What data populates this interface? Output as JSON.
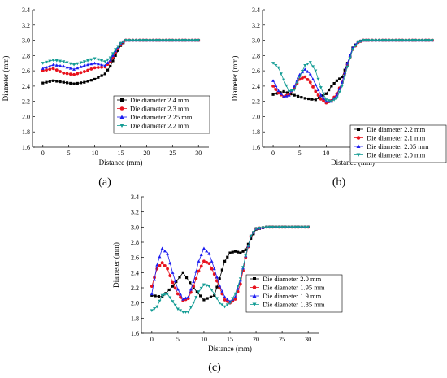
{
  "chart_data": [
    {
      "type": "line",
      "panel_label": "(a)",
      "xlabel": "Distance (mm)",
      "ylabel": "Diameter (mm)",
      "xlim": [
        -2,
        32
      ],
      "ylim": [
        1.6,
        3.4
      ],
      "xticks": [
        0,
        5,
        10,
        15,
        20,
        25,
        30
      ],
      "yticks": [
        1.6,
        1.8,
        2.0,
        2.2,
        2.4,
        2.6,
        2.8,
        3.0,
        3.2,
        3.4
      ],
      "legend_position": "center-right",
      "series": [
        {
          "name": "Die diameter 2.4 mm",
          "marker": "square",
          "color": "#000000",
          "x": [
            0,
            2,
            4,
            6,
            8,
            10,
            12,
            13,
            14,
            15,
            16,
            18,
            20,
            25,
            30
          ],
          "y": [
            2.44,
            2.47,
            2.45,
            2.43,
            2.45,
            2.49,
            2.56,
            2.66,
            2.8,
            2.93,
            3.0,
            3.0,
            3.0,
            3.0,
            3.0
          ]
        },
        {
          "name": "Die diameter 2.3 mm",
          "marker": "circle",
          "color": "#e8121d",
          "x": [
            0,
            2,
            4,
            6,
            8,
            10,
            12,
            13,
            14,
            15,
            16,
            18,
            20,
            25,
            30
          ],
          "y": [
            2.6,
            2.63,
            2.57,
            2.55,
            2.59,
            2.64,
            2.65,
            2.72,
            2.84,
            2.95,
            3.0,
            3.0,
            3.0,
            3.0,
            3.0
          ]
        },
        {
          "name": "Die diameter 2.25 mm",
          "marker": "triangle-up",
          "color": "#1c1cf0",
          "x": [
            0,
            2,
            4,
            6,
            8,
            10,
            12,
            13,
            14,
            15,
            16,
            18,
            20,
            25,
            30
          ],
          "y": [
            2.63,
            2.68,
            2.66,
            2.62,
            2.67,
            2.7,
            2.67,
            2.74,
            2.86,
            2.96,
            3.0,
            3.0,
            3.0,
            3.0,
            3.0
          ]
        },
        {
          "name": "Die diameter 2.2 mm",
          "marker": "triangle-down",
          "color": "#139c94",
          "x": [
            0,
            2,
            4,
            6,
            8,
            10,
            12,
            13,
            14,
            15,
            16,
            18,
            20,
            25,
            30
          ],
          "y": [
            2.7,
            2.74,
            2.72,
            2.68,
            2.72,
            2.76,
            2.72,
            2.77,
            2.88,
            2.96,
            3.0,
            3.0,
            3.0,
            3.0,
            3.0
          ]
        }
      ]
    },
    {
      "type": "line",
      "panel_label": "(b)",
      "xlabel": "Distance (mm)",
      "ylabel": "Diameter (mm)",
      "xlim": [
        -2,
        32
      ],
      "ylim": [
        1.6,
        3.4
      ],
      "xticks": [
        0,
        5,
        10,
        15,
        20,
        25,
        30
      ],
      "yticks": [
        1.6,
        1.8,
        2.0,
        2.2,
        2.4,
        2.6,
        2.8,
        3.0,
        3.2,
        3.4
      ],
      "legend_position": "lower-right",
      "series": [
        {
          "name": "Die diameter 2.2 mm",
          "marker": "square",
          "color": "#000000",
          "x": [
            0,
            2,
            4,
            6,
            8,
            10,
            11,
            12,
            13,
            14,
            15,
            16,
            17,
            18,
            20,
            25,
            30
          ],
          "y": [
            2.29,
            2.33,
            2.28,
            2.24,
            2.22,
            2.3,
            2.4,
            2.47,
            2.52,
            2.7,
            2.9,
            2.98,
            3.0,
            3.0,
            3.0,
            3.0,
            3.0
          ]
        },
        {
          "name": "Die diameter 2.1 mm",
          "marker": "circle",
          "color": "#e8121d",
          "x": [
            0,
            1,
            2,
            3,
            4,
            5,
            6,
            7,
            8,
            9,
            10,
            11,
            12,
            13,
            14,
            15,
            16,
            17,
            18,
            20,
            25,
            30
          ],
          "y": [
            2.4,
            2.31,
            2.26,
            2.29,
            2.38,
            2.49,
            2.52,
            2.45,
            2.33,
            2.23,
            2.18,
            2.21,
            2.3,
            2.45,
            2.68,
            2.88,
            2.97,
            3.0,
            3.0,
            3.0,
            3.0,
            3.0
          ]
        },
        {
          "name": "Die diameter 2.05 mm",
          "marker": "triangle-up",
          "color": "#1c1cf0",
          "x": [
            0,
            1,
            2,
            3,
            4,
            5,
            6,
            7,
            8,
            9,
            10,
            11,
            12,
            13,
            14,
            15,
            16,
            17,
            18,
            20,
            25,
            30
          ],
          "y": [
            2.47,
            2.34,
            2.26,
            2.28,
            2.4,
            2.55,
            2.62,
            2.56,
            2.42,
            2.28,
            2.2,
            2.2,
            2.28,
            2.45,
            2.7,
            2.9,
            2.98,
            3.0,
            3.0,
            3.0,
            3.0,
            3.0
          ]
        },
        {
          "name": "Die diameter 2.0 mm",
          "marker": "triangle-down",
          "color": "#139c94",
          "x": [
            0,
            1,
            2,
            3,
            4,
            5,
            6,
            7,
            8,
            9,
            10,
            11,
            12,
            13,
            14,
            15,
            16,
            17,
            18,
            20,
            25,
            30
          ],
          "y": [
            2.7,
            2.64,
            2.48,
            2.33,
            2.35,
            2.52,
            2.67,
            2.71,
            2.6,
            2.38,
            2.22,
            2.2,
            2.24,
            2.4,
            2.65,
            2.88,
            2.97,
            3.0,
            3.0,
            3.0,
            3.0,
            3.0
          ]
        }
      ]
    },
    {
      "type": "line",
      "panel_label": "(c)",
      "xlabel": "Distance (mm)",
      "ylabel": "Diameter (mm)",
      "xlim": [
        -2,
        32
      ],
      "ylim": [
        1.6,
        3.4
      ],
      "xticks": [
        0,
        5,
        10,
        15,
        20,
        25,
        30
      ],
      "yticks": [
        1.6,
        1.8,
        2.0,
        2.2,
        2.4,
        2.6,
        2.8,
        3.0,
        3.2,
        3.4
      ],
      "legend_position": "lower-right",
      "series": [
        {
          "name": "Die diameter 2.0 mm",
          "marker": "square",
          "color": "#000000",
          "x": [
            0,
            2,
            4,
            6,
            8,
            10,
            12,
            13,
            14,
            15,
            16,
            17,
            18,
            19,
            20,
            22,
            25,
            30
          ],
          "y": [
            2.1,
            2.08,
            2.22,
            2.4,
            2.2,
            2.04,
            2.1,
            2.32,
            2.55,
            2.66,
            2.68,
            2.66,
            2.7,
            2.85,
            2.97,
            3.0,
            3.0,
            3.0
          ]
        },
        {
          "name": "Die diameter 1.95 mm",
          "marker": "circle",
          "color": "#e8121d",
          "x": [
            0,
            1,
            2,
            3,
            4,
            5,
            6,
            7,
            8,
            9,
            10,
            11,
            12,
            13,
            14,
            15,
            16,
            17,
            18,
            19,
            20,
            22,
            25,
            30
          ],
          "y": [
            2.22,
            2.45,
            2.53,
            2.45,
            2.27,
            2.12,
            2.03,
            2.06,
            2.22,
            2.42,
            2.55,
            2.52,
            2.38,
            2.2,
            2.04,
            2.0,
            2.05,
            2.25,
            2.6,
            2.88,
            2.98,
            3.0,
            3.0,
            3.0
          ]
        },
        {
          "name": "Die diameter 1.9 mm",
          "marker": "triangle-up",
          "color": "#1c1cf0",
          "x": [
            0,
            1,
            2,
            3,
            4,
            5,
            6,
            7,
            8,
            9,
            10,
            11,
            12,
            13,
            14,
            15,
            16,
            17,
            18,
            19,
            20,
            22,
            25,
            30
          ],
          "y": [
            2.12,
            2.5,
            2.72,
            2.65,
            2.4,
            2.18,
            2.05,
            2.08,
            2.28,
            2.55,
            2.72,
            2.65,
            2.45,
            2.23,
            2.08,
            2.02,
            2.08,
            2.3,
            2.62,
            2.88,
            2.98,
            3.0,
            3.0,
            3.0
          ]
        },
        {
          "name": "Die diameter 1.85 mm",
          "marker": "triangle-down",
          "color": "#139c94",
          "x": [
            0,
            1,
            2,
            3,
            4,
            5,
            6,
            7,
            8,
            9,
            10,
            11,
            12,
            13,
            14,
            15,
            16,
            17,
            18,
            19,
            20,
            22,
            25,
            30
          ],
          "y": [
            1.9,
            1.95,
            2.1,
            2.12,
            2.02,
            1.92,
            1.88,
            1.88,
            2.0,
            2.15,
            2.24,
            2.22,
            2.12,
            2.0,
            1.95,
            2.0,
            2.12,
            2.32,
            2.62,
            2.88,
            2.98,
            3.0,
            3.0,
            3.0
          ]
        }
      ]
    }
  ]
}
